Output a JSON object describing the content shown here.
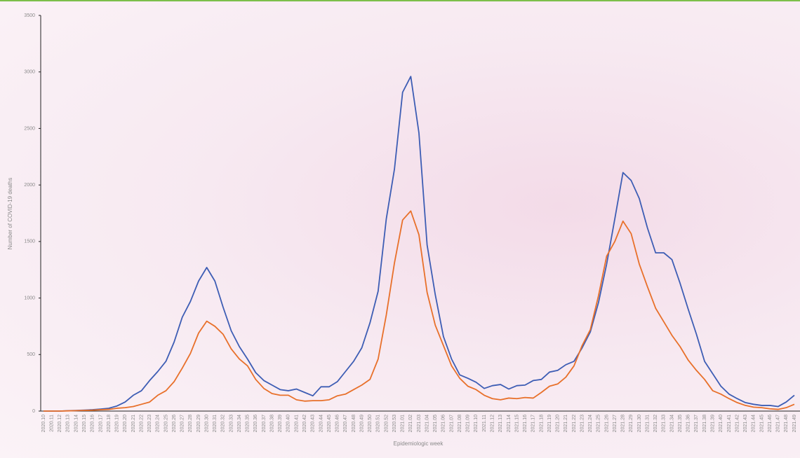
{
  "chart_data": {
    "type": "line",
    "y_label": "Number of COVID-19 deaths",
    "x_label": "Epidemiologic week",
    "categories": [
      "2020.10",
      "2020.11",
      "2020.12",
      "2020.13",
      "2020.14",
      "2020.15",
      "2020.16",
      "2020.17",
      "2020.18",
      "2020.19",
      "2020.20",
      "2020.21",
      "2020.22",
      "2020.23",
      "2020.24",
      "2020.25",
      "2020.26",
      "2020.27",
      "2020.28",
      "2020.29",
      "2020.30",
      "2020.31",
      "2020.32",
      "2020.33",
      "2020.34",
      "2020.35",
      "2020.36",
      "2020.37",
      "2020.38",
      "2020.39",
      "2020.40",
      "2020.41",
      "2020.42",
      "2020.43",
      "2020.44",
      "2020.45",
      "2020.46",
      "2020.47",
      "2020.48",
      "2020.49",
      "2020.50",
      "2020.51",
      "2020.52",
      "2020.53",
      "2021.01",
      "2021.02",
      "2021.03",
      "2021.04",
      "2021.05",
      "2021.06",
      "2021.07",
      "2021.08",
      "2021.09",
      "2021.10",
      "2021.11",
      "2021.12",
      "2021.13",
      "2021.14",
      "2021.15",
      "2021.16",
      "2021.17",
      "2021.18",
      "2021.19",
      "2021.20",
      "2021.21",
      "2021.22",
      "2021.23",
      "2021.24",
      "2021.25",
      "2021.26",
      "2021.27",
      "2021.28",
      "2021.29",
      "2021.30",
      "2021.31",
      "2021.32",
      "2021.33",
      "2021.34",
      "2021.35",
      "2021.36",
      "2021.37",
      "2021.38",
      "2021.39",
      "2021.40",
      "2021.41",
      "2021.42",
      "2021.43",
      "2021.44",
      "2021.45",
      "2021.46",
      "2021.47",
      "2021.48",
      "2021.49"
    ],
    "series": [
      {
        "color": "#3d5db4",
        "values": [
          0,
          0,
          0,
          3,
          5,
          8,
          12,
          18,
          25,
          45,
          80,
          140,
          180,
          270,
          350,
          440,
          610,
          830,
          970,
          1150,
          1270,
          1150,
          920,
          710,
          570,
          460,
          340,
          270,
          230,
          190,
          180,
          195,
          165,
          135,
          215,
          215,
          260,
          350,
          440,
          560,
          780,
          1060,
          1700,
          2140,
          2820,
          2960,
          2460,
          1470,
          1030,
          660,
          460,
          320,
          290,
          255,
          200,
          225,
          235,
          195,
          225,
          230,
          270,
          280,
          345,
          360,
          410,
          440,
          560,
          700,
          960,
          1300,
          1700,
          2110,
          2040,
          1880,
          1620,
          1400,
          1400,
          1340,
          1130,
          900,
          680,
          440,
          330,
          220,
          150,
          110,
          75,
          60,
          50,
          50,
          40,
          80,
          140
        ]
      },
      {
        "color": "#e8702a",
        "values": [
          0,
          0,
          0,
          2,
          4,
          6,
          8,
          12,
          15,
          25,
          30,
          40,
          60,
          80,
          140,
          180,
          260,
          380,
          510,
          690,
          795,
          750,
          680,
          550,
          460,
          400,
          280,
          200,
          155,
          140,
          140,
          100,
          88,
          92,
          92,
          100,
          135,
          150,
          190,
          230,
          280,
          460,
          850,
          1310,
          1690,
          1770,
          1560,
          1050,
          760,
          580,
          400,
          290,
          220,
          190,
          140,
          110,
          100,
          115,
          110,
          120,
          115,
          165,
          220,
          240,
          300,
          400,
          580,
          720,
          1020,
          1370,
          1500,
          1680,
          1570,
          1300,
          1100,
          910,
          790,
          670,
          570,
          450,
          360,
          280,
          180,
          150,
          110,
          75,
          50,
          35,
          30,
          20,
          15,
          30,
          60
        ]
      }
    ],
    "ylim": [
      0,
      3500
    ],
    "yticks": [
      0,
      500,
      1000,
      1500,
      2000,
      2500,
      3000,
      3500
    ],
    "grid": false
  }
}
